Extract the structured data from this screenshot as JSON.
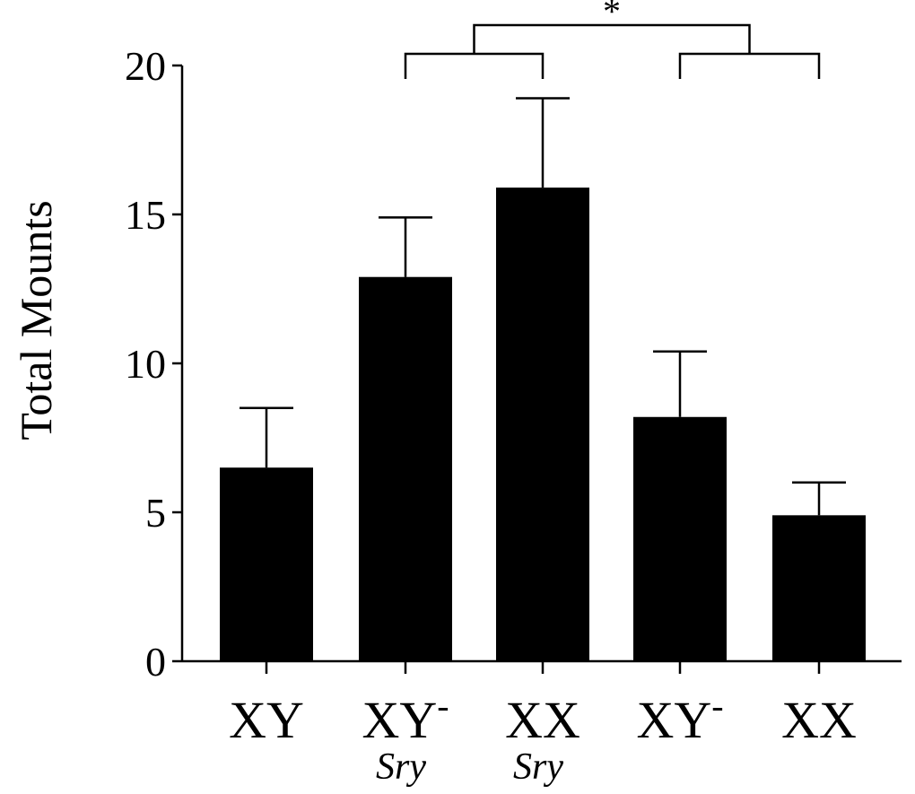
{
  "chart_data": {
    "type": "bar",
    "ylabel": "Total Mounts",
    "xlabel": "",
    "ylim": [
      0,
      20
    ],
    "yticks": [
      0,
      5,
      10,
      15,
      20
    ],
    "categories": [
      {
        "main": "XY",
        "sup": "",
        "sub": ""
      },
      {
        "main": "XY",
        "sup": "-",
        "sub": "Sry"
      },
      {
        "main": "XX",
        "sup": "",
        "sub": "Sry"
      },
      {
        "main": "XY",
        "sup": "-",
        "sub": ""
      },
      {
        "main": "XX",
        "sup": "",
        "sub": ""
      }
    ],
    "values": [
      6.5,
      12.9,
      15.9,
      8.2,
      4.9
    ],
    "error_upper": [
      8.5,
      14.9,
      18.9,
      10.4,
      6.0
    ],
    "bar_color": "#000000",
    "significance": {
      "label": "*",
      "group_a": [
        1,
        2
      ],
      "group_b": [
        3,
        4
      ]
    }
  }
}
